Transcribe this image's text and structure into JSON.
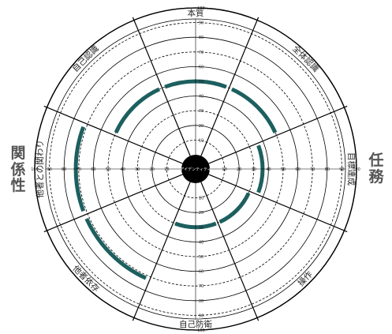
{
  "side_labels": {
    "left": "関係性",
    "right": "任務"
  },
  "center_label": "アイデンティティ",
  "scale_ticks": [
    "10",
    "20",
    "30",
    "40",
    "50",
    "60",
    "70",
    "80",
    "90",
    "100"
  ],
  "sectors": [
    {
      "label": "本質",
      "value": 50
    },
    {
      "label": "全体認識",
      "value": 50
    },
    {
      "label": "目標達成",
      "value": 36
    },
    {
      "label": "操作",
      "value": 30
    },
    {
      "label": "自己防衛",
      "value": 30
    },
    {
      "label": "他者依存",
      "value": 72
    },
    {
      "label": "他者との関わり",
      "value": 72
    },
    {
      "label": "自己認識",
      "value": 50
    }
  ],
  "colors": {
    "arc": "#1d5f5f",
    "hub": "#000000",
    "line": "#000000",
    "text": "#222222"
  }
}
